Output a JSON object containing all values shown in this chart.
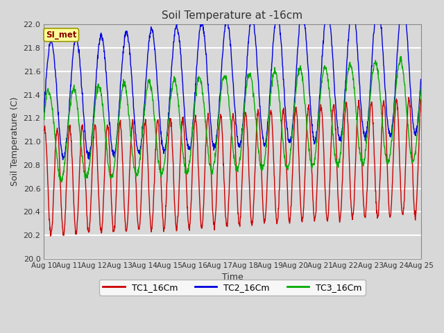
{
  "title": "Soil Temperature at -16cm",
  "xlabel": "Time",
  "ylabel": "Soil Temperature (C)",
  "ylim": [
    20.0,
    22.0
  ],
  "background_color": "#d8d8d8",
  "plot_bg_color": "#d8d8d8",
  "grid_color": "#ffffff",
  "legend_label": "SI_met",
  "legend_bg": "#ffff99",
  "legend_border": "#999900",
  "series": {
    "TC1_16Cm": {
      "color": "#cc0000",
      "label": "TC1_16Cm"
    },
    "TC2_16Cm": {
      "color": "#0000dd",
      "label": "TC2_16Cm"
    },
    "TC3_16Cm": {
      "color": "#00aa00",
      "label": "TC3_16Cm"
    }
  },
  "xtick_labels": [
    "Aug 10",
    "Aug 11",
    "Aug 12",
    "Aug 13",
    "Aug 14",
    "Aug 15",
    "Aug 16",
    "Aug 17",
    "Aug 18",
    "Aug 19",
    "Aug 20",
    "Aug 21",
    "Aug 22",
    "Aug 23",
    "Aug 24",
    "Aug 25"
  ],
  "ytick_step": 0.2,
  "n_days": 15,
  "pts_per_day": 96
}
